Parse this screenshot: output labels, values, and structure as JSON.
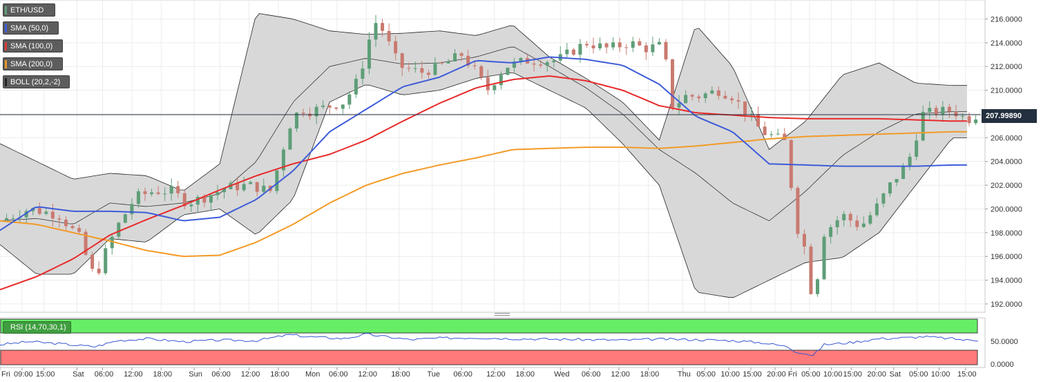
{
  "legend": {
    "symbol": "ETH/USD",
    "indicators": [
      {
        "label": "SMA (50,0)",
        "color": "#3d5bd9"
      },
      {
        "label": "SMA (100,0)",
        "color": "#d93a3a"
      },
      {
        "label": "SMA (200,0)",
        "color": "#e8962a"
      },
      {
        "label": "BOLL (20,2,-2)",
        "color": "#222222"
      }
    ],
    "rsi_label": "RSI (14,70,30,1)"
  },
  "last_price_label": "207.99890",
  "colors": {
    "up": "#5e9e78",
    "down": "#c97a70",
    "sma50": "#3d5bd9",
    "sma100": "#e82a2a",
    "sma200": "#f39a26",
    "band_fill": "#d6d6d6",
    "rsi_line": "#3454d1",
    "rsi_over": "#66ee66",
    "rsi_under": "#ff7a7a"
  },
  "chart_data": {
    "type": "line",
    "title": "ETH/USD",
    "price_axis": {
      "ylim": [
        191.3,
        217.6
      ],
      "ticks": [
        "216.0000",
        "214.0000",
        "212.0000",
        "210.0000",
        "208.0000",
        "206.0000",
        "204.0000",
        "202.0000",
        "200.0000",
        "198.0000",
        "196.0000",
        "194.0000",
        "192.0000"
      ],
      "tick_values": [
        216,
        214,
        212,
        210,
        208,
        206,
        204,
        202,
        200,
        198,
        196,
        194,
        192
      ]
    },
    "x_labels": [
      "Fri",
      "09:00",
      "15:00",
      "Sat",
      "06:00",
      "12:00",
      "18:00",
      "Sun",
      "06:00",
      "12:00",
      "18:00",
      "Mon",
      "06:00",
      "12:00",
      "18:00",
      "Tue",
      "06:00",
      "12:00",
      "18:00",
      "Wed",
      "06:00",
      "12:00",
      "18:00",
      "Thu",
      "05:00",
      "10:00",
      "15:00",
      "20:00",
      "Fri",
      "05:00",
      "10:00",
      "15:00",
      "20:00",
      "Sat",
      "05:00",
      "10:00",
      "15:00"
    ],
    "x_label_index": [
      0,
      30,
      60,
      105,
      140,
      180,
      220,
      265,
      300,
      340,
      380,
      425,
      460,
      500,
      545,
      590,
      630,
      675,
      715,
      765,
      805,
      845,
      885,
      932,
      962,
      995,
      1025,
      1058,
      1080,
      1105,
      1135,
      1162,
      1195,
      1220,
      1252,
      1282,
      1318
    ],
    "n_candles": 1340,
    "last_price": 207.9989,
    "sma50": {
      "name": "SMA (50,0)",
      "x": [
        0,
        50,
        100,
        150,
        200,
        250,
        300,
        350,
        400,
        450,
        500,
        550,
        600,
        650,
        700,
        750,
        800,
        850,
        900,
        950,
        1000,
        1050,
        1100,
        1150,
        1200,
        1250,
        1300,
        1320
      ],
      "y": [
        198.2,
        200.2,
        199.8,
        199.8,
        199.7,
        199.0,
        199.3,
        200.8,
        203.2,
        206.5,
        208.4,
        210.3,
        211.1,
        212.5,
        212.3,
        212.8,
        212.6,
        212.1,
        210.5,
        207.8,
        206.5,
        203.8,
        203.7,
        203.6,
        203.6,
        203.6,
        203.7,
        203.7
      ]
    },
    "sma100": {
      "name": "SMA (100,0)",
      "x": [
        0,
        50,
        100,
        150,
        200,
        250,
        300,
        350,
        400,
        450,
        500,
        550,
        600,
        650,
        700,
        750,
        800,
        850,
        900,
        950,
        1000,
        1050,
        1100,
        1150,
        1200,
        1250,
        1300,
        1320
      ],
      "y": [
        193.2,
        194.3,
        195.8,
        197.8,
        199.1,
        200.3,
        201.6,
        202.8,
        203.8,
        204.6,
        205.8,
        207.4,
        208.9,
        210.2,
        210.9,
        211.2,
        210.8,
        210.0,
        208.7,
        208.1,
        207.9,
        207.7,
        207.6,
        207.6,
        207.6,
        207.5,
        207.4,
        207.4
      ]
    },
    "sma200": {
      "name": "SMA (200,0)",
      "x": [
        0,
        50,
        100,
        150,
        200,
        250,
        300,
        350,
        400,
        450,
        500,
        550,
        600,
        650,
        700,
        750,
        800,
        850,
        900,
        950,
        1000,
        1050,
        1100,
        1150,
        1200,
        1250,
        1300,
        1320
      ],
      "y": [
        199.0,
        198.7,
        198.0,
        197.3,
        196.5,
        196.0,
        196.1,
        197.2,
        198.7,
        200.5,
        202.0,
        203.0,
        203.7,
        204.3,
        205.0,
        205.1,
        205.2,
        205.2,
        205.1,
        205.3,
        205.6,
        205.9,
        206.1,
        206.2,
        206.3,
        206.4,
        206.5,
        206.5
      ]
    },
    "boll_upper": {
      "x": [
        0,
        50,
        100,
        150,
        200,
        250,
        300,
        350,
        400,
        450,
        500,
        550,
        600,
        650,
        700,
        750,
        800,
        850,
        900,
        950,
        1000,
        1050,
        1100,
        1150,
        1200,
        1250,
        1300,
        1320
      ],
      "y": [
        205.5,
        204.0,
        202.5,
        203.0,
        202.8,
        201.5,
        203.8,
        216.5,
        216.0,
        215.0,
        214.7,
        214.8,
        215.0,
        214.6,
        215.5,
        212.8,
        211.0,
        209.0,
        205.8,
        215.5,
        212.0,
        205.0,
        207.4,
        211.3,
        212.3,
        210.6,
        210.4,
        210.4
      ]
    },
    "boll_middle": {
      "x": [
        0,
        50,
        100,
        150,
        200,
        250,
        300,
        350,
        400,
        450,
        500,
        550,
        600,
        650,
        700,
        750,
        800,
        850,
        900,
        950,
        1000,
        1050,
        1100,
        1150,
        1200,
        1250,
        1300,
        1320
      ],
      "y": [
        199.0,
        199.2,
        198.7,
        200.5,
        200.2,
        200.5,
        201.3,
        204.0,
        209.0,
        212.0,
        212.7,
        212.2,
        212.3,
        212.8,
        213.7,
        212.0,
        210.2,
        208.0,
        205.0,
        203.0,
        200.5,
        199.0,
        201.5,
        204.5,
        206.5,
        208.0,
        208.2,
        208.2
      ]
    },
    "boll_lower": {
      "x": [
        0,
        50,
        100,
        150,
        200,
        250,
        300,
        350,
        400,
        450,
        500,
        550,
        600,
        650,
        700,
        750,
        800,
        850,
        900,
        950,
        1000,
        1050,
        1100,
        1150,
        1200,
        1250,
        1300,
        1320
      ],
      "y": [
        197.0,
        194.5,
        194.5,
        197.5,
        197.2,
        199.5,
        200.0,
        197.8,
        200.8,
        209.0,
        210.5,
        209.6,
        210.0,
        211.0,
        211.5,
        210.0,
        208.5,
        205.5,
        202.0,
        193.0,
        192.5,
        194.0,
        195.5,
        195.9,
        198.0,
        202.0,
        206.0,
        206.0
      ]
    },
    "candles_anchor": {
      "x": [
        0,
        40,
        80,
        110,
        120,
        130,
        145,
        160,
        185,
        210,
        235,
        255,
        280,
        310,
        340,
        370,
        395,
        410,
        420,
        440,
        470,
        490,
        505,
        515,
        530,
        545,
        575,
        600,
        630,
        650,
        665,
        690,
        720,
        760,
        800,
        830,
        860,
        880,
        905,
        920,
        930,
        955,
        980,
        1000,
        1040,
        1060,
        1075,
        1085,
        1095,
        1105,
        1110,
        1125,
        1150,
        1175,
        1195,
        1215,
        1240,
        1260,
        1280,
        1300,
        1320,
        1335
      ],
      "close": [
        199.0,
        200.0,
        199.5,
        197.5,
        195.5,
        194.2,
        196.5,
        198.5,
        201.0,
        201.5,
        201.5,
        200.5,
        201.0,
        201.8,
        202.0,
        201.5,
        207.0,
        208.5,
        208.2,
        208.5,
        209.0,
        211.0,
        214.5,
        216.0,
        214.0,
        212.0,
        211.5,
        212.0,
        213.0,
        211.5,
        210.0,
        212.0,
        212.5,
        212.5,
        214.0,
        213.5,
        214.0,
        213.5,
        213.8,
        208.0,
        209.5,
        209.5,
        210.0,
        209.5,
        206.5,
        206.0,
        205.5,
        198.5,
        198.0,
        194.0,
        192.0,
        198.0,
        199.5,
        198.5,
        200.0,
        202.0,
        204.0,
        208.0,
        208.2,
        208.3,
        207.5,
        208.0
      ]
    },
    "rsi": {
      "name": "RSI (14,70,30,1)",
      "ylim": [
        0,
        100
      ],
      "ticks": [
        "50.0000",
        "0.0000"
      ],
      "tick_values": [
        50,
        0
      ],
      "overbought": 70,
      "oversold": 30,
      "x": [
        0,
        40,
        80,
        110,
        130,
        160,
        200,
        250,
        300,
        350,
        395,
        420,
        470,
        500,
        520,
        560,
        600,
        650,
        700,
        750,
        800,
        850,
        900,
        950,
        1000,
        1040,
        1075,
        1085,
        1100,
        1110,
        1125,
        1160,
        1200,
        1240,
        1260,
        1300,
        1320,
        1335
      ],
      "y": [
        46,
        52,
        48,
        44,
        42,
        54,
        58,
        52,
        55,
        54,
        66,
        62,
        58,
        67,
        63,
        56,
        59,
        60,
        58,
        57,
        56,
        55,
        57,
        56,
        54,
        50,
        42,
        33,
        28,
        24,
        46,
        50,
        58,
        60,
        62,
        58,
        55,
        55
      ]
    }
  }
}
